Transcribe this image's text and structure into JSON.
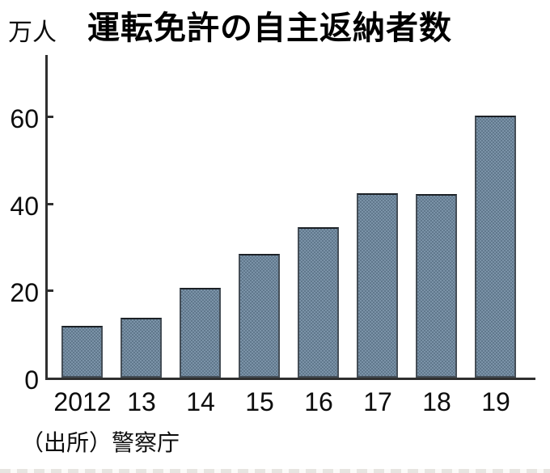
{
  "title": "運転免許の自主返納者数",
  "y_axis": {
    "unit_label": "万人",
    "tick_labels": [
      "0",
      "20",
      "40",
      "60"
    ]
  },
  "source_caption": "（出所）警察庁",
  "colors": {
    "bar_fill": "#6f89a1",
    "bar_border": "#454e57",
    "axis": "#2f2f2f",
    "text": "#0d0d0d",
    "background": "#ffffff"
  },
  "chart_data": {
    "type": "bar",
    "title": "運転免許の自主返納者数",
    "categories": [
      "2012",
      "13",
      "14",
      "15",
      "16",
      "17",
      "18",
      "19"
    ],
    "values": [
      11.8,
      13.8,
      20.6,
      28.5,
      34.5,
      42.4,
      42.1,
      60.1
    ],
    "xlabel": "",
    "ylabel": "万人",
    "ylim": [
      0,
      75
    ],
    "yticks": [
      0,
      20,
      40,
      60
    ],
    "grid": false,
    "legend": "none",
    "annotations": [],
    "source": "（出所）警察庁"
  }
}
